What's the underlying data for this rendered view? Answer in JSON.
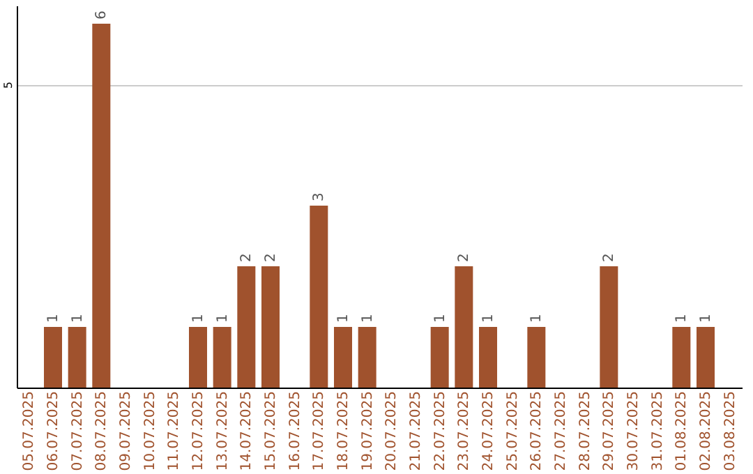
{
  "chart_data": {
    "type": "bar",
    "categories": [
      "05.07.2025",
      "06.07.2025",
      "07.07.2025",
      "08.07.2025",
      "09.07.2025",
      "10.07.2025",
      "11.07.2025",
      "12.07.2025",
      "13.07.2025",
      "14.07.2025",
      "15.07.2025",
      "16.07.2025",
      "17.07.2025",
      "18.07.2025",
      "19.07.2025",
      "20.07.2025",
      "21.07.2025",
      "22.07.2025",
      "23.07.2025",
      "24.07.2025",
      "25.07.2025",
      "26.07.2025",
      "27.07.2025",
      "28.07.2025",
      "29.07.2025",
      "30.07.2025",
      "31.07.2025",
      "01.08.2025",
      "02.08.2025",
      "03.08.2025"
    ],
    "values": [
      0,
      1,
      1,
      6,
      0,
      0,
      0,
      1,
      1,
      2,
      2,
      0,
      3,
      1,
      1,
      0,
      0,
      1,
      2,
      1,
      0,
      1,
      0,
      0,
      2,
      0,
      0,
      1,
      1,
      0
    ],
    "value_labels": [
      null,
      "1",
      "1",
      "6",
      null,
      null,
      null,
      "1",
      "1",
      "2",
      "2",
      null,
      "3",
      "1",
      "1",
      null,
      null,
      "1",
      "2",
      "1",
      null,
      "1",
      null,
      null,
      "2",
      null,
      null,
      "1",
      "1",
      null
    ],
    "color": "#a0522d",
    "ylim": [
      0,
      6.3
    ],
    "yticks": [
      5
    ],
    "grid": "y"
  }
}
